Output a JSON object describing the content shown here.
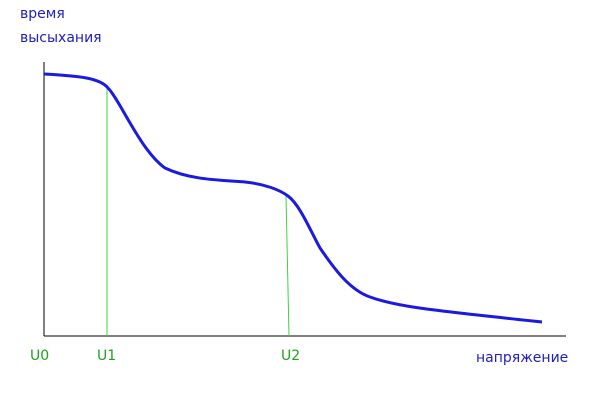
{
  "y_axis": {
    "label_line1": "время",
    "label_line2": "высыхания"
  },
  "x_axis": {
    "label": "напряжение",
    "points": [
      "U0",
      "U1",
      "U2"
    ]
  }
}
